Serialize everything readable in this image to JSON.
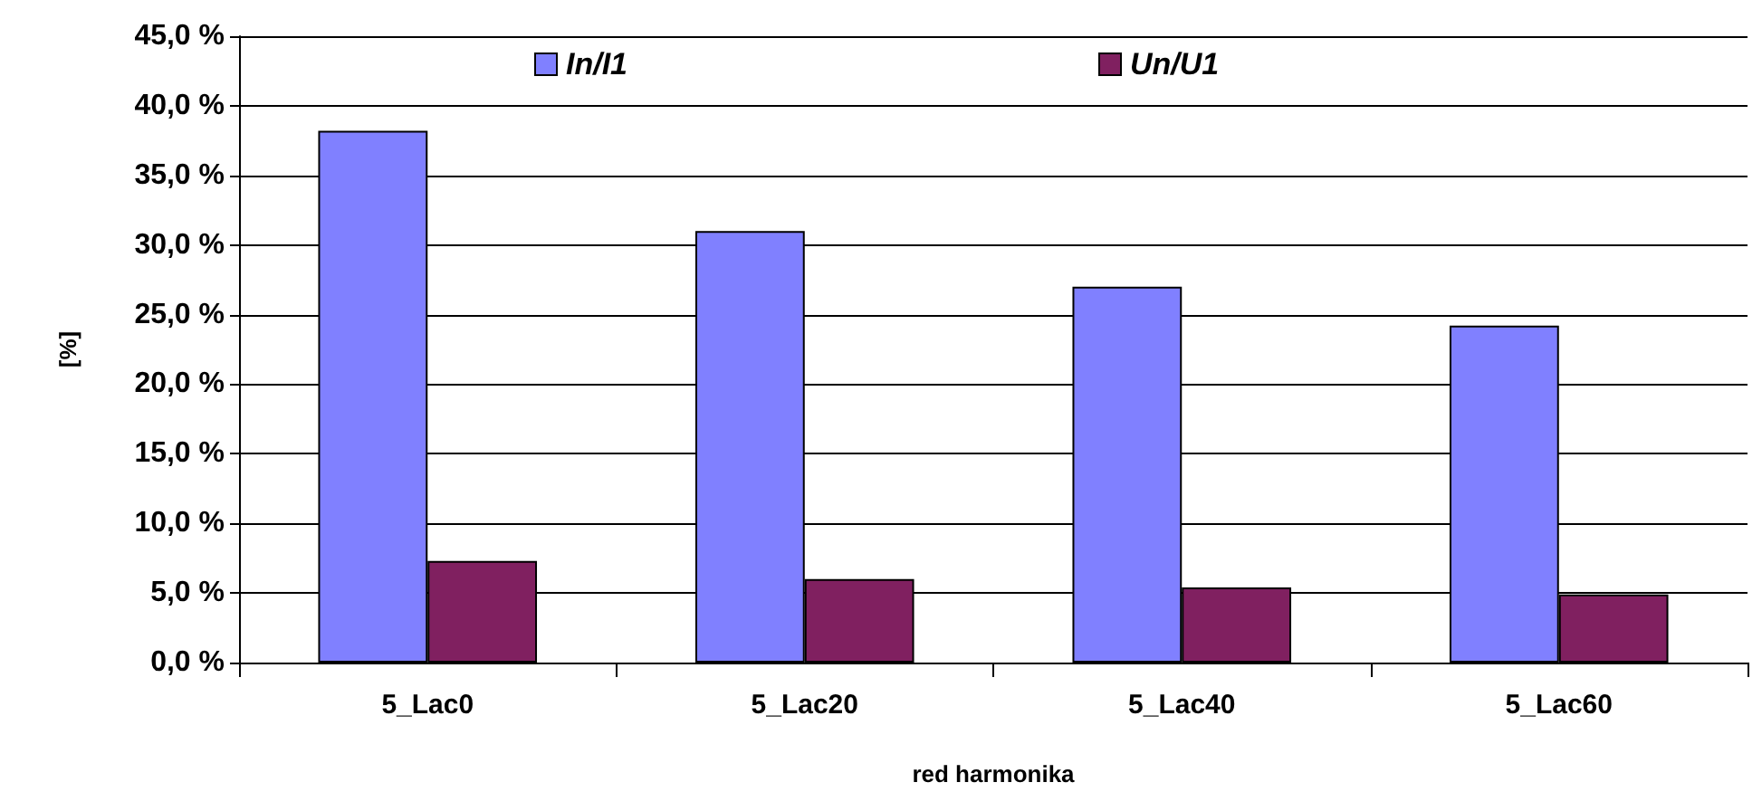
{
  "chart_data": {
    "type": "bar",
    "xlabel": "red harmonika",
    "ylabel": "[%]",
    "categories": [
      "5_Lac0",
      "5_Lac20",
      "5_Lac40",
      "5_Lac60"
    ],
    "series": [
      {
        "name": "In/I1",
        "color": "#8080ff",
        "values": [
          38.2,
          31.0,
          27.0,
          24.2
        ]
      },
      {
        "name": "Un/U1",
        "color": "#802060",
        "values": [
          7.3,
          6.0,
          5.4,
          4.9
        ]
      }
    ],
    "ylim": [
      0,
      45
    ],
    "yticks": [
      {
        "value": 0,
        "label": "0,0 %"
      },
      {
        "value": 5,
        "label": "5,0 %"
      },
      {
        "value": 10,
        "label": "10,0 %"
      },
      {
        "value": 15,
        "label": "15,0 %"
      },
      {
        "value": 20,
        "label": "20,0 %"
      },
      {
        "value": 25,
        "label": "25,0 %"
      },
      {
        "value": 30,
        "label": "30,0 %"
      },
      {
        "value": 35,
        "label": "35,0 %"
      },
      {
        "value": 40,
        "label": "40,0 %"
      },
      {
        "value": 45,
        "label": "45,0 %"
      }
    ],
    "grid": "y",
    "legend": "top"
  }
}
